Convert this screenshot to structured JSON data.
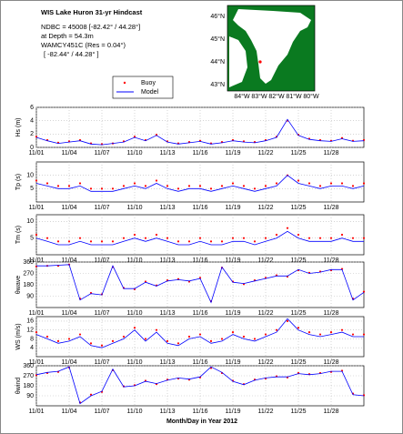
{
  "header": {
    "title": "WIS Lake Huron 31-yr Hindcast",
    "lines": [
      "NDBC = 45008 [-82.42° / 44.28°]",
      "at Depth = 54.3m",
      "WAMCY451C (Res = 0.04°)",
      "[ -82.44° / 44.28° ]"
    ]
  },
  "map": {
    "lat_labels": [
      "46°N",
      "45°N",
      "44°N",
      "43°N"
    ],
    "lon_labels": [
      "84°W",
      "83°W",
      "82°W",
      "81°W",
      "80°W"
    ]
  },
  "xlabel": "Month/Day in Year 2012",
  "chart_data": [
    {
      "type": "line",
      "ylabel": "Hs (m)",
      "ylim": [
        0,
        6
      ],
      "yticks": [
        0,
        2,
        4,
        6
      ],
      "xlim": [
        1,
        31
      ],
      "xticks": [
        {
          "value": 1,
          "label": "11/01"
        },
        {
          "value": 4,
          "label": "11/04"
        },
        {
          "value": 7,
          "label": "11/07"
        },
        {
          "value": 10,
          "label": "11/10"
        },
        {
          "value": 13,
          "label": "11/13"
        },
        {
          "value": 16,
          "label": "11/16"
        },
        {
          "value": 19,
          "label": "11/19"
        },
        {
          "value": 22,
          "label": "11/22"
        },
        {
          "value": 25,
          "label": "11/25"
        },
        {
          "value": 28,
          "label": "11/28"
        }
      ],
      "x": [
        1,
        2,
        3,
        4,
        5,
        6,
        7,
        8,
        9,
        10,
        11,
        12,
        13,
        14,
        15,
        16,
        17,
        18,
        19,
        20,
        21,
        22,
        23,
        24,
        25,
        26,
        27,
        28,
        29,
        30,
        31
      ],
      "series": [
        {
          "name": "Buoy",
          "color": "#ff0000",
          "style": "dots",
          "values": [
            1.6,
            1.1,
            0.7,
            0.9,
            1.1,
            0.6,
            0.5,
            0.6,
            0.9,
            1.6,
            1.1,
            1.9,
            0.9,
            0.6,
            0.8,
            1.0,
            0.6,
            0.8,
            1.1,
            0.9,
            0.8,
            1.1,
            1.6,
            4.0,
            1.9,
            1.3,
            1.1,
            1.0,
            1.4,
            1.0,
            1.1
          ]
        },
        {
          "name": "Model",
          "color": "#0000ff",
          "style": "line",
          "values": [
            1.5,
            1.0,
            0.6,
            0.8,
            1.0,
            0.5,
            0.4,
            0.6,
            0.8,
            1.5,
            1.0,
            1.8,
            0.8,
            0.5,
            0.7,
            0.9,
            0.5,
            0.7,
            1.0,
            0.8,
            0.7,
            1.0,
            1.5,
            4.2,
            1.8,
            1.2,
            1.0,
            0.9,
            1.3,
            0.9,
            1.0
          ]
        }
      ]
    },
    {
      "type": "line",
      "ylabel": "Tp (s)",
      "ylim": [
        0,
        15
      ],
      "yticks": [
        5,
        10
      ],
      "xlim": [
        1,
        31
      ],
      "xticks": [
        {
          "value": 1,
          "label": "11/01"
        },
        {
          "value": 4,
          "label": "11/04"
        },
        {
          "value": 7,
          "label": "11/07"
        },
        {
          "value": 10,
          "label": "11/10"
        },
        {
          "value": 13,
          "label": "11/13"
        },
        {
          "value": 16,
          "label": "11/16"
        },
        {
          "value": 19,
          "label": "11/19"
        },
        {
          "value": 22,
          "label": "11/22"
        },
        {
          "value": 25,
          "label": "11/25"
        },
        {
          "value": 28,
          "label": "11/28"
        }
      ],
      "x": [
        1,
        2,
        3,
        4,
        5,
        6,
        7,
        8,
        9,
        10,
        11,
        12,
        13,
        14,
        15,
        16,
        17,
        18,
        19,
        20,
        21,
        22,
        23,
        24,
        25,
        26,
        27,
        28,
        29,
        30,
        31
      ],
      "series": [
        {
          "name": "Buoy",
          "color": "#ff0000",
          "style": "dots",
          "values": [
            8,
            7,
            6,
            6,
            7,
            5,
            5,
            5,
            6,
            7,
            6,
            8,
            6,
            5,
            6,
            6,
            5,
            6,
            7,
            6,
            5,
            6,
            7,
            10,
            8,
            7,
            6,
            7,
            7,
            6,
            7
          ]
        },
        {
          "name": "Model",
          "color": "#0000ff",
          "style": "line",
          "values": [
            7,
            6,
            5,
            5,
            6,
            4,
            4,
            4,
            5,
            6,
            5,
            7,
            5,
            4,
            5,
            5,
            4,
            5,
            6,
            5,
            4,
            5,
            6,
            10,
            7,
            6,
            5,
            6,
            6,
            5,
            6
          ]
        }
      ]
    },
    {
      "type": "line",
      "ylabel": "Tm (s)",
      "ylim": [
        0,
        12
      ],
      "yticks": [
        5,
        10
      ],
      "xlim": [
        1,
        31
      ],
      "xticks": [
        {
          "value": 1,
          "label": "11/01"
        },
        {
          "value": 4,
          "label": "11/04"
        },
        {
          "value": 7,
          "label": "11/07"
        },
        {
          "value": 10,
          "label": "11/10"
        },
        {
          "value": 13,
          "label": "11/13"
        },
        {
          "value": 16,
          "label": "11/16"
        },
        {
          "value": 19,
          "label": "11/19"
        },
        {
          "value": 22,
          "label": "11/22"
        },
        {
          "value": 25,
          "label": "11/25"
        },
        {
          "value": 28,
          "label": "11/28"
        }
      ],
      "x": [
        1,
        2,
        3,
        4,
        5,
        6,
        7,
        8,
        9,
        10,
        11,
        12,
        13,
        14,
        15,
        16,
        17,
        18,
        19,
        20,
        21,
        22,
        23,
        24,
        25,
        26,
        27,
        28,
        29,
        30,
        31
      ],
      "series": [
        {
          "name": "Buoy",
          "color": "#ff0000",
          "style": "dots",
          "values": [
            6,
            5,
            4,
            4,
            5,
            4,
            4,
            4,
            5,
            6,
            5,
            6,
            5,
            4,
            4,
            5,
            4,
            4,
            5,
            5,
            4,
            5,
            6,
            8,
            6,
            5,
            5,
            5,
            6,
            5,
            5
          ]
        },
        {
          "name": "Model",
          "color": "#0000ff",
          "style": "line",
          "values": [
            5,
            4,
            3,
            3,
            4,
            3,
            3,
            3,
            4,
            5,
            4,
            5,
            4,
            3,
            3,
            4,
            3,
            3,
            4,
            4,
            3,
            4,
            5,
            7,
            5,
            4,
            4,
            4,
            5,
            4,
            4
          ]
        }
      ]
    },
    {
      "type": "line",
      "ylabel": "θwave",
      "ylim": [
        0,
        360
      ],
      "yticks": [
        90,
        180,
        270,
        360
      ],
      "xlim": [
        1,
        31
      ],
      "xticks": [
        {
          "value": 1,
          "label": "11/01"
        },
        {
          "value": 4,
          "label": "11/04"
        },
        {
          "value": 7,
          "label": "11/07"
        },
        {
          "value": 10,
          "label": "11/10"
        },
        {
          "value": 13,
          "label": "11/13"
        },
        {
          "value": 16,
          "label": "11/16"
        },
        {
          "value": 19,
          "label": "11/19"
        },
        {
          "value": 22,
          "label": "11/22"
        },
        {
          "value": 25,
          "label": "11/25"
        },
        {
          "value": 28,
          "label": "11/28"
        }
      ],
      "x": [
        1,
        2,
        3,
        4,
        5,
        6,
        7,
        8,
        9,
        10,
        11,
        12,
        13,
        14,
        15,
        16,
        17,
        18,
        19,
        20,
        21,
        22,
        23,
        24,
        25,
        26,
        27,
        28,
        29,
        30,
        31
      ],
      "series": [
        {
          "name": "Buoy",
          "color": "#ff0000",
          "style": "dots",
          "values": [
            325,
            330,
            330,
            340,
            70,
            115,
            105,
            320,
            155,
            145,
            205,
            175,
            215,
            225,
            205,
            235,
            50,
            315,
            205,
            185,
            215,
            235,
            255,
            245,
            295,
            275,
            285,
            295,
            305,
            70,
            125
          ]
        },
        {
          "name": "Model",
          "color": "#0000ff",
          "style": "line",
          "values": [
            330,
            330,
            335,
            340,
            60,
            110,
            100,
            330,
            150,
            150,
            200,
            170,
            210,
            220,
            210,
            230,
            40,
            320,
            200,
            190,
            210,
            230,
            250,
            250,
            300,
            270,
            280,
            300,
            300,
            60,
            120
          ]
        }
      ]
    },
    {
      "type": "line",
      "ylabel": "WS (m/s)",
      "ylim": [
        0,
        18
      ],
      "yticks": [
        4,
        8,
        12,
        16
      ],
      "xlim": [
        1,
        31
      ],
      "xticks": [
        {
          "value": 1,
          "label": "11/01"
        },
        {
          "value": 4,
          "label": "11/04"
        },
        {
          "value": 7,
          "label": "11/07"
        },
        {
          "value": 10,
          "label": "11/10"
        },
        {
          "value": 13,
          "label": "11/13"
        },
        {
          "value": 16,
          "label": "11/16"
        },
        {
          "value": 19,
          "label": "11/19"
        },
        {
          "value": 22,
          "label": "11/22"
        },
        {
          "value": 25,
          "label": "11/25"
        },
        {
          "value": 28,
          "label": "11/28"
        }
      ],
      "x": [
        1,
        2,
        3,
        4,
        5,
        6,
        7,
        8,
        9,
        10,
        11,
        12,
        13,
        14,
        15,
        16,
        17,
        18,
        19,
        20,
        21,
        22,
        23,
        24,
        25,
        26,
        27,
        28,
        29,
        30,
        31
      ],
      "series": [
        {
          "name": "Buoy",
          "color": "#ff0000",
          "style": "dots",
          "values": [
            11,
            9,
            7,
            8,
            10,
            6,
            5,
            7,
            9,
            13,
            8,
            12,
            7,
            6,
            9,
            10,
            7,
            8,
            11,
            9,
            8,
            10,
            12,
            16,
            13,
            11,
            10,
            11,
            12,
            10,
            10
          ]
        },
        {
          "name": "Model",
          "color": "#0000ff",
          "style": "line",
          "values": [
            10,
            8,
            6,
            7,
            9,
            5,
            4,
            6,
            8,
            12,
            7,
            11,
            6,
            5,
            8,
            9,
            6,
            7,
            10,
            8,
            7,
            9,
            11,
            17,
            12,
            10,
            9,
            10,
            11,
            9,
            9
          ]
        }
      ]
    },
    {
      "type": "line",
      "ylabel": "θwind",
      "ylim": [
        0,
        360
      ],
      "yticks": [
        90,
        180,
        270,
        360
      ],
      "xlim": [
        1,
        31
      ],
      "xticks": [
        {
          "value": 1,
          "label": "11/01"
        },
        {
          "value": 4,
          "label": "11/04"
        },
        {
          "value": 7,
          "label": "11/07"
        },
        {
          "value": 10,
          "label": "11/10"
        },
        {
          "value": 13,
          "label": "11/13"
        },
        {
          "value": 16,
          "label": "11/16"
        },
        {
          "value": 19,
          "label": "11/19"
        },
        {
          "value": 22,
          "label": "11/22"
        },
        {
          "value": 25,
          "label": "11/25"
        },
        {
          "value": 28,
          "label": "11/28"
        }
      ],
      "x": [
        1,
        2,
        3,
        4,
        5,
        6,
        7,
        8,
        9,
        10,
        11,
        12,
        13,
        14,
        15,
        16,
        17,
        18,
        19,
        20,
        21,
        22,
        23,
        24,
        25,
        26,
        27,
        28,
        29,
        30,
        31
      ],
      "series": [
        {
          "name": "Buoy",
          "color": "#ff0000",
          "style": "dots",
          "values": [
            275,
            295,
            305,
            345,
            30,
            100,
            125,
            320,
            175,
            185,
            225,
            195,
            235,
            245,
            235,
            255,
            340,
            295,
            225,
            195,
            235,
            245,
            265,
            255,
            295,
            285,
            295,
            305,
            315,
            110,
            95
          ]
        },
        {
          "name": "Model",
          "color": "#0000ff",
          "style": "line",
          "values": [
            280,
            300,
            310,
            350,
            20,
            90,
            130,
            330,
            170,
            180,
            220,
            200,
            230,
            250,
            240,
            260,
            350,
            300,
            220,
            190,
            230,
            250,
            260,
            260,
            290,
            280,
            290,
            310,
            310,
            100,
            90
          ]
        }
      ]
    }
  ]
}
